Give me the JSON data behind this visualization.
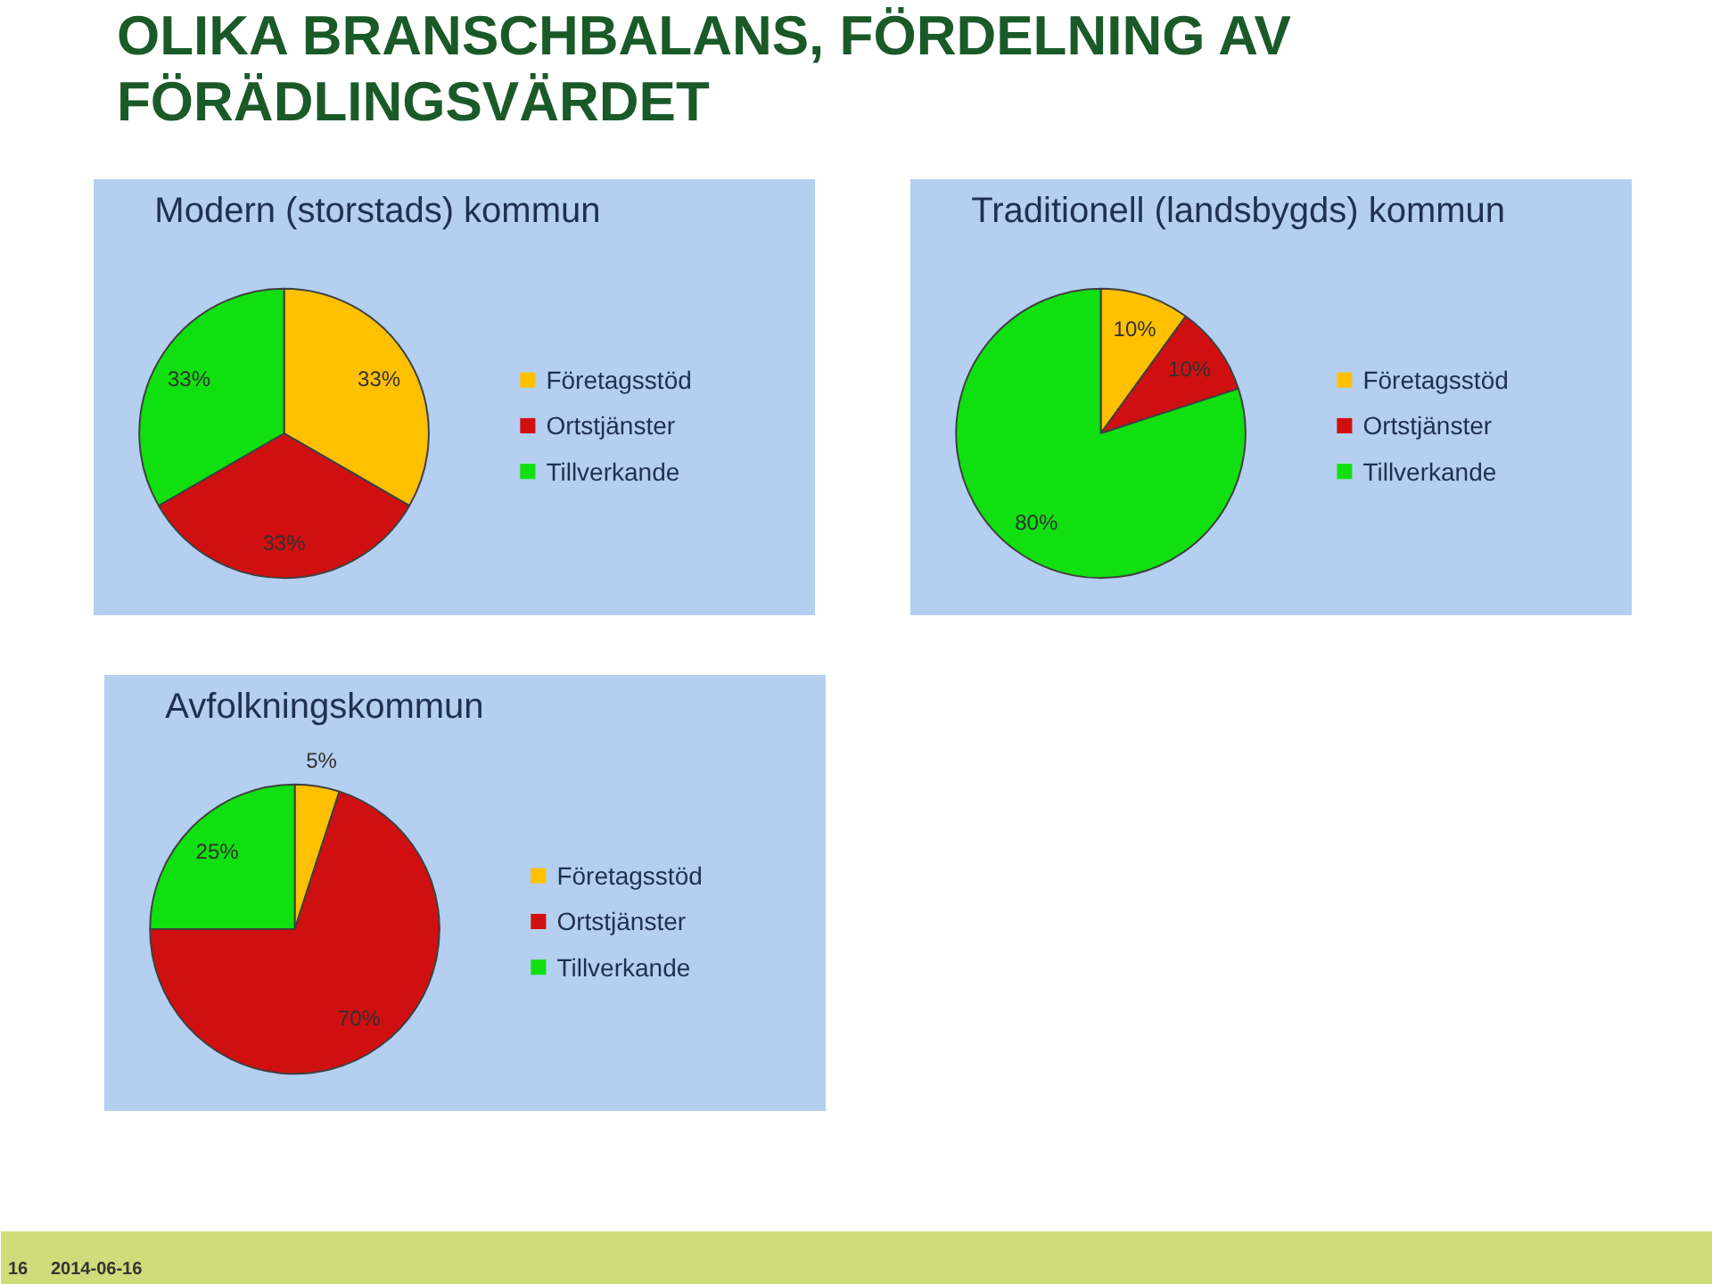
{
  "chart_data": [
    {
      "type": "other",
      "title": "OLIKA BRANSCHBALANS, FÖRDELNING AV FÖRÄDLINGSVÄRDET",
      "annotations": [
        "16",
        "2014-06-16"
      ]
    },
    {
      "type": "pie",
      "title": "Modern (storstads) kommun",
      "categories": [
        "Företagsstöd",
        "Ortstjänster",
        "Tillverkande"
      ],
      "values": [
        33,
        33,
        33
      ],
      "value_labels": [
        "33%",
        "33%",
        "33%"
      ],
      "colors": [
        "#ffc000",
        "#d01010",
        "#10e010"
      ],
      "legend": "right"
    },
    {
      "type": "pie",
      "title": "Traditionell (landsbygds) kommun",
      "categories": [
        "Företagsstöd",
        "Ortstjänster",
        "Tillverkande"
      ],
      "values": [
        10,
        10,
        80
      ],
      "value_labels": [
        "10%",
        "10%",
        "80%"
      ],
      "colors": [
        "#ffc000",
        "#d01010",
        "#10e010"
      ],
      "legend": "right"
    },
    {
      "type": "pie",
      "title": "Avfolkningskommun",
      "categories": [
        "Företagsstöd",
        "Ortstjänster",
        "Tillverkande"
      ],
      "values": [
        5,
        70,
        25
      ],
      "value_labels": [
        "5%",
        "70%",
        "25%"
      ],
      "colors": [
        "#ffc000",
        "#d01010",
        "#10e010"
      ],
      "legend": "right"
    }
  ]
}
